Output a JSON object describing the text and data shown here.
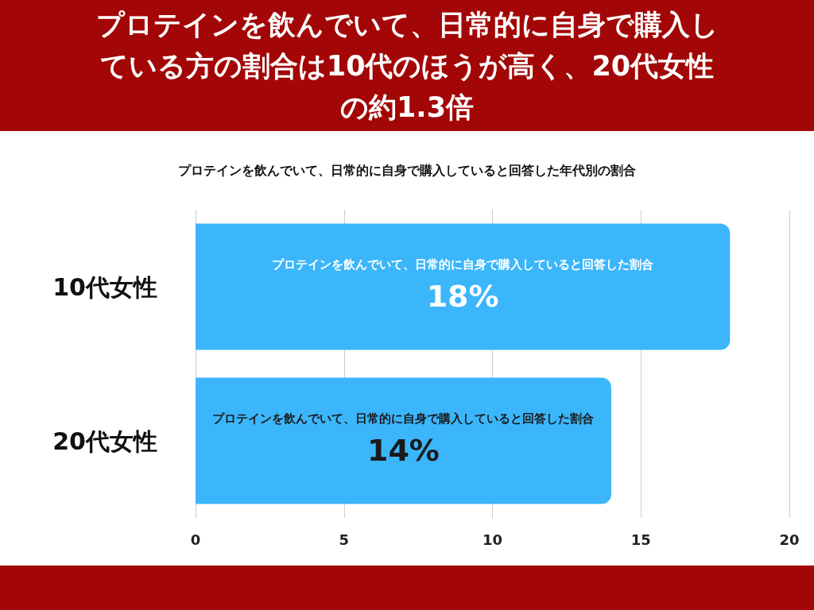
{
  "chart_data": {
    "type": "bar",
    "orientation": "horizontal",
    "title": "プロテインを飲んでいて、日常的に自身で購入している方の割合は10代のほうが高く、20代女性の約1.3倍",
    "subtitle": "プロテインを飲んでいて、日常的に自身で購入していると回答した年代別の割合",
    "categories": [
      "10代女性",
      "20代女性"
    ],
    "series": [
      {
        "name": "プロテインを飲んでいて、日常的に自身で購入していると回答した割合",
        "color": "#3bb6fb",
        "values": [
          18,
          14
        ],
        "value_labels": [
          "18%",
          "14%"
        ]
      }
    ],
    "xlim": [
      0,
      20
    ],
    "xticks": [
      0,
      5,
      10,
      15,
      20
    ],
    "grid": "x",
    "legend": false
  }
}
